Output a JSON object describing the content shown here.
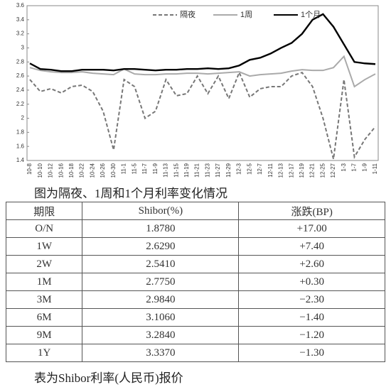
{
  "chart_data": {
    "type": "line",
    "categories": [
      "10-8",
      "10-10",
      "10-12",
      "10-16",
      "10-18",
      "10-22",
      "10-24",
      "10-26",
      "10-30",
      "11-1",
      "11-5",
      "11-7",
      "11-9",
      "11-13",
      "11-15",
      "11-19",
      "11-21",
      "11-23",
      "11-27",
      "11-29",
      "12-3",
      "12-5",
      "12-7",
      "12-11",
      "12-13",
      "12-17",
      "12-19",
      "12-21",
      "12-25",
      "12-27",
      "1-3",
      "1-7",
      "1-9",
      "1-11"
    ],
    "series": [
      {
        "name": "隔夜",
        "color": "#777777",
        "dashed": true,
        "values": [
          2.55,
          2.38,
          2.42,
          2.36,
          2.45,
          2.47,
          2.38,
          2.1,
          1.55,
          2.55,
          2.45,
          2.0,
          2.1,
          2.55,
          2.32,
          2.35,
          2.6,
          2.35,
          2.6,
          2.28,
          2.65,
          2.3,
          2.42,
          2.45,
          2.45,
          2.6,
          2.65,
          2.45,
          2.0,
          1.42,
          2.55,
          1.45,
          1.7,
          1.88
        ]
      },
      {
        "name": "1周",
        "color": "#aaaaaa",
        "values": [
          2.72,
          2.68,
          2.66,
          2.65,
          2.65,
          2.66,
          2.64,
          2.63,
          2.62,
          2.7,
          2.63,
          2.62,
          2.62,
          2.63,
          2.63,
          2.64,
          2.64,
          2.63,
          2.64,
          2.65,
          2.66,
          2.6,
          2.62,
          2.63,
          2.64,
          2.67,
          2.69,
          2.68,
          2.68,
          2.72,
          2.88,
          2.45,
          2.55,
          2.63
        ]
      },
      {
        "name": "1个月",
        "color": "#000000",
        "values": [
          2.78,
          2.7,
          2.69,
          2.67,
          2.67,
          2.69,
          2.69,
          2.69,
          2.68,
          2.7,
          2.7,
          2.69,
          2.68,
          2.69,
          2.69,
          2.7,
          2.7,
          2.71,
          2.7,
          2.71,
          2.75,
          2.83,
          2.86,
          2.92,
          3.0,
          3.07,
          3.2,
          3.4,
          3.48,
          3.3,
          3.05,
          2.8,
          2.78,
          2.77
        ]
      }
    ],
    "ylim": [
      1.4,
      3.6
    ],
    "yticks": [
      1.4,
      1.6,
      1.8,
      2,
      2.2,
      2.4,
      2.6,
      2.8,
      3,
      3.2,
      3.4,
      3.6
    ],
    "legend": "top"
  },
  "chart_caption": "图为隔夜、1周和1个月利率变化情况",
  "table": {
    "header": [
      "期限",
      "Shibor(%)",
      "涨跌(BP)"
    ],
    "rows": [
      [
        "O/N",
        "1.8780",
        "+17.00"
      ],
      [
        "1W",
        "2.6290",
        "+7.40"
      ],
      [
        "2W",
        "2.5410",
        "+2.60"
      ],
      [
        "1M",
        "2.7750",
        "+0.30"
      ],
      [
        "3M",
        "2.9840",
        "−2.30"
      ],
      [
        "6M",
        "3.1060",
        "−1.40"
      ],
      [
        "9M",
        "3.2840",
        "−1.20"
      ],
      [
        "1Y",
        "3.3370",
        "−1.30"
      ]
    ]
  },
  "table_caption": "表为Shibor利率(人民币)报价"
}
